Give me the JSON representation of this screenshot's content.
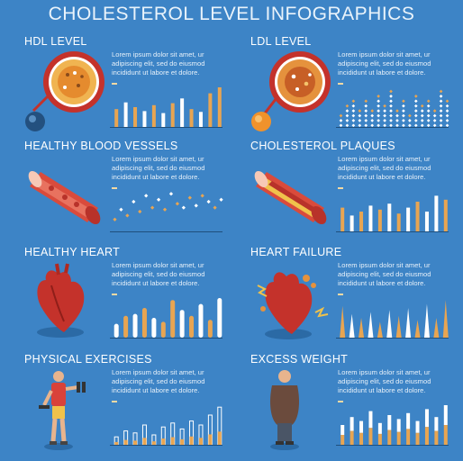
{
  "title": "CHOLESTEROL LEVEL INFOGRAPHICS",
  "colors": {
    "background": "#3d84c6",
    "orange": "#e8a552",
    "white": "#ffffff",
    "red": "#c4322b"
  },
  "sections": [
    {
      "heading": "HDL LEVEL",
      "icon": "cholesterol-particle-icon",
      "text": "Lorem ipsum dolor sit amet, ur adipiscing elit, sed do eiusmod incididunt ut labore et dolore.",
      "chart_type": "bar"
    },
    {
      "heading": "LDL LEVEL",
      "icon": "cholesterol-particle-icon",
      "text": "Lorem ipsum dolor sit amet, ur adipiscing elit, sed do eiusmod incididunt ut labore et dolore.",
      "chart_type": "dot-column"
    },
    {
      "heading": "HEALTHY BLOOD VESSELS",
      "icon": "blood-vessel-icon",
      "text": "Lorem ipsum dolor sit amet, ur adipiscing elit, sed do eiusmod incididunt ut labore et dolore.",
      "chart_type": "scatter"
    },
    {
      "heading": "CHOLESTEROL PLAQUES",
      "icon": "plaque-vessel-icon",
      "text": "Lorem ipsum dolor sit amet, ur adipiscing elit, sed do eiusmod incididunt ut labore et dolore.",
      "chart_type": "bar"
    },
    {
      "heading": "HEALTHY HEART",
      "icon": "heart-icon",
      "text": "Lorem ipsum dolor sit amet, ur adipiscing elit, sed do eiusmod incididunt ut labore et dolore.",
      "chart_type": "rounded-bar"
    },
    {
      "heading": "HEART FAILURE",
      "icon": "heart-failure-icon",
      "text": "Lorem ipsum dolor sit amet, ur adipiscing elit, sed do eiusmod incididunt ut labore et dolore.",
      "chart_type": "spike"
    },
    {
      "heading": "PHYSICAL EXERCISES",
      "icon": "exercising-person-icon",
      "text": "Lorem ipsum dolor sit amet, ur adipiscing elit, sed do eiusmod incididunt ut labore et dolore.",
      "chart_type": "outline-bar"
    },
    {
      "heading": "EXCESS WEIGHT",
      "icon": "overweight-person-icon",
      "text": "Lorem ipsum dolor sit amet, ur adipiscing elit, sed do eiusmod incididunt ut labore et dolore.",
      "chart_type": "stacked-bar"
    }
  ],
  "chart_data": [
    {
      "type": "bar",
      "values": [
        0.45,
        0.62,
        0.5,
        0.4,
        0.55,
        0.35,
        0.6,
        0.72,
        0.45,
        0.38,
        0.85,
        1.0
      ],
      "series_colors": [
        "orange",
        "white",
        "orange",
        "white",
        "orange",
        "white",
        "orange",
        "white",
        "orange",
        "white",
        "orange",
        "orange"
      ]
    },
    {
      "type": "dot-column",
      "values": [
        0.35,
        0.6,
        0.8,
        0.5,
        0.7,
        0.45,
        0.85,
        0.6,
        1.0,
        0.55,
        0.75,
        0.4,
        0.9,
        0.65,
        0.8,
        0.5,
        0.95,
        0.7
      ]
    },
    {
      "type": "scatter",
      "values": [
        0.3,
        0.55,
        0.4,
        0.75,
        0.5,
        0.9,
        0.6,
        0.8,
        0.55,
        0.95,
        0.7,
        0.6,
        0.85,
        0.65,
        0.9,
        0.75,
        0.6,
        0.8
      ]
    },
    {
      "type": "bar",
      "values": [
        0.6,
        0.4,
        0.5,
        0.65,
        0.55,
        0.7,
        0.45,
        0.6,
        0.75,
        0.5,
        0.9,
        0.8
      ],
      "series_colors": [
        "orange",
        "white",
        "orange",
        "white",
        "orange",
        "white",
        "orange",
        "white",
        "orange",
        "white",
        "white",
        "orange"
      ]
    },
    {
      "type": "rounded-bar",
      "values": [
        0.35,
        0.55,
        0.6,
        0.75,
        0.5,
        0.4,
        0.95,
        0.7,
        0.55,
        0.85,
        0.45,
        1.0
      ],
      "series_colors": [
        "white",
        "orange",
        "white",
        "orange",
        "white",
        "orange",
        "orange",
        "white",
        "orange",
        "white",
        "orange",
        "white"
      ]
    },
    {
      "type": "spike",
      "values": [
        0.8,
        0.6,
        0.5,
        0.65,
        0.4,
        0.7,
        0.55,
        0.75,
        0.45,
        0.85,
        0.5,
        0.95
      ],
      "series_colors": [
        "orange",
        "white",
        "orange",
        "white",
        "orange",
        "white",
        "orange",
        "white",
        "orange",
        "white",
        "orange",
        "orange"
      ]
    },
    {
      "type": "outline-bar",
      "values": [
        0.2,
        0.35,
        0.3,
        0.5,
        0.25,
        0.45,
        0.55,
        0.4,
        0.6,
        0.5,
        0.75,
        0.95
      ]
    },
    {
      "type": "stacked-bar",
      "values": [
        0.5,
        0.7,
        0.6,
        0.85,
        0.55,
        0.75,
        0.65,
        0.8,
        0.6,
        0.9,
        0.7,
        1.0
      ]
    }
  ]
}
